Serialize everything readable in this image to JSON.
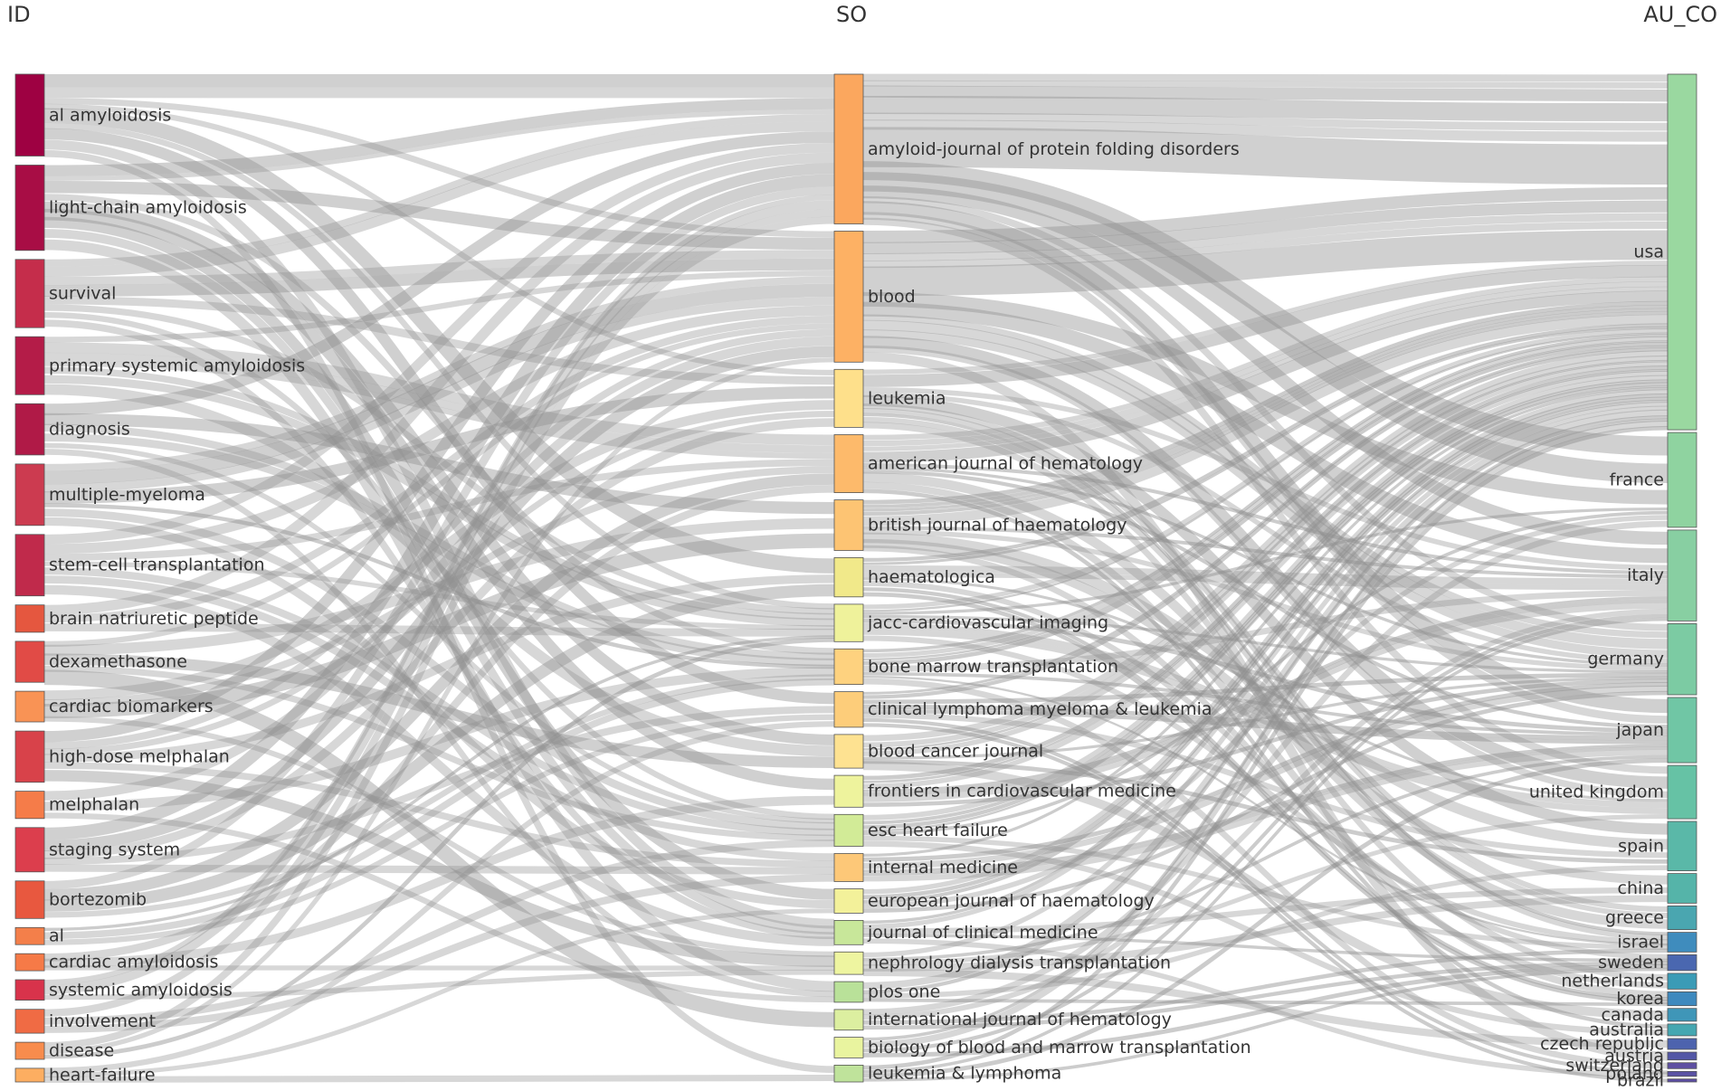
{
  "columns": [
    {
      "title": "ID",
      "nodes": [
        {
          "label": "al amyloidosis",
          "color": "#9e0142",
          "value": 48
        },
        {
          "label": "light-chain amyloidosis",
          "color": "#a80d45",
          "value": 50
        },
        {
          "label": "survival",
          "color": "#c52d4b",
          "value": 40
        },
        {
          "label": "primary systemic amyloidosis",
          "color": "#b41c48",
          "value": 34
        },
        {
          "label": "diagnosis",
          "color": "#b01a47",
          "value": 30
        },
        {
          "label": "multiple-myeloma",
          "color": "#cc3b50",
          "value": 36
        },
        {
          "label": "stem-cell transplantation",
          "color": "#c02a4b",
          "value": 36
        },
        {
          "label": "brain natriuretic peptide",
          "color": "#e5573f",
          "value": 16
        },
        {
          "label": "dexamethasone",
          "color": "#e14b46",
          "value": 24
        },
        {
          "label": "cardiac biomarkers",
          "color": "#f99355",
          "value": 18
        },
        {
          "label": "high-dose melphalan",
          "color": "#d8424a",
          "value": 30
        },
        {
          "label": "melphalan",
          "color": "#f57c49",
          "value": 16
        },
        {
          "label": "staging system",
          "color": "#dc3e4d",
          "value": 26
        },
        {
          "label": "bortezomib",
          "color": "#e8583f",
          "value": 22
        },
        {
          "label": "al",
          "color": "#f47f4a",
          "value": 10
        },
        {
          "label": "cardiac amyloidosis",
          "color": "#f67a47",
          "value": 10
        },
        {
          "label": "systemic amyloidosis",
          "color": "#d8334b",
          "value": 12
        },
        {
          "label": "involvement",
          "color": "#f06b44",
          "value": 14
        },
        {
          "label": "disease",
          "color": "#f88c4d",
          "value": 10
        },
        {
          "label": "heart-failure",
          "color": "#fdae61",
          "value": 8
        }
      ]
    },
    {
      "title": "SO",
      "nodes": [
        {
          "label": "amyloid-journal of protein folding disorders",
          "color": "#fba75e",
          "value": 160
        },
        {
          "label": "blood",
          "color": "#fdb164",
          "value": 140
        },
        {
          "label": "leukemia",
          "color": "#fee08b",
          "value": 62
        },
        {
          "label": "american journal of hematology",
          "color": "#fdba6b",
          "value": 62
        },
        {
          "label": "british journal of haematology",
          "color": "#fdc473",
          "value": 54
        },
        {
          "label": "haematologica",
          "color": "#f1e98a",
          "value": 42
        },
        {
          "label": "jacc-cardiovascular imaging",
          "color": "#eff29b",
          "value": 40
        },
        {
          "label": "bone marrow transplantation",
          "color": "#fed27f",
          "value": 38
        },
        {
          "label": "clinical lymphoma myeloma & leukemia",
          "color": "#fdcd7a",
          "value": 38
        },
        {
          "label": "blood cancer journal",
          "color": "#fee291",
          "value": 36
        },
        {
          "label": "frontiers in cardiovascular medicine",
          "color": "#eef39d",
          "value": 34
        },
        {
          "label": "esc heart failure",
          "color": "#d2eb97",
          "value": 34
        },
        {
          "label": "internal medicine",
          "color": "#fdc878",
          "value": 30
        },
        {
          "label": "european journal of haematology",
          "color": "#f3f19a",
          "value": 26
        },
        {
          "label": "journal of clinical medicine",
          "color": "#c8e79a",
          "value": 26
        },
        {
          "label": "nephrology dialysis transplantation",
          "color": "#eef5a0",
          "value": 24
        },
        {
          "label": "plos one",
          "color": "#b9e199",
          "value": 22
        },
        {
          "label": "international journal of hematology",
          "color": "#dcefa0",
          "value": 22
        },
        {
          "label": "biology of blood and marrow transplantation",
          "color": "#e9f49f",
          "value": 22
        },
        {
          "label": "leukemia & lymphoma",
          "color": "#bfe39b",
          "value": 18
        }
      ]
    },
    {
      "title": "AU_CO",
      "nodes": [
        {
          "label": "usa",
          "color": "#9ad8a0",
          "value": 360
        },
        {
          "label": "france",
          "color": "#8fd3a0",
          "value": 96
        },
        {
          "label": "italy",
          "color": "#88cfa2",
          "value": 92
        },
        {
          "label": "germany",
          "color": "#7ccba3",
          "value": 72
        },
        {
          "label": "japan",
          "color": "#70c6a5",
          "value": 66
        },
        {
          "label": "united kingdom",
          "color": "#66c2a5",
          "value": 54
        },
        {
          "label": "spain",
          "color": "#5ab8a8",
          "value": 50
        },
        {
          "label": "china",
          "color": "#55b4a9",
          "value": 30
        },
        {
          "label": "greece",
          "color": "#4aa6b0",
          "value": 24
        },
        {
          "label": "israel",
          "color": "#3f8cbd",
          "value": 20
        },
        {
          "label": "sweden",
          "color": "#4a67b0",
          "value": 16
        },
        {
          "label": "netherlands",
          "color": "#3a9bb6",
          "value": 16
        },
        {
          "label": "korea",
          "color": "#3e89be",
          "value": 14
        },
        {
          "label": "canada",
          "color": "#3f96b8",
          "value": 13
        },
        {
          "label": "australia",
          "color": "#45a7b1",
          "value": 12
        },
        {
          "label": "czech republic",
          "color": "#4d63ae",
          "value": 11
        },
        {
          "label": "austria",
          "color": "#5357a6",
          "value": 8
        },
        {
          "label": "switzerland",
          "color": "#5e4fa2",
          "value": 6
        },
        {
          "label": "poland",
          "color": "#5a52a4",
          "value": 5
        },
        {
          "label": "brazil",
          "color": "#5c4ea1",
          "value": 3
        }
      ]
    }
  ],
  "link_color": "#8f8f8f"
}
